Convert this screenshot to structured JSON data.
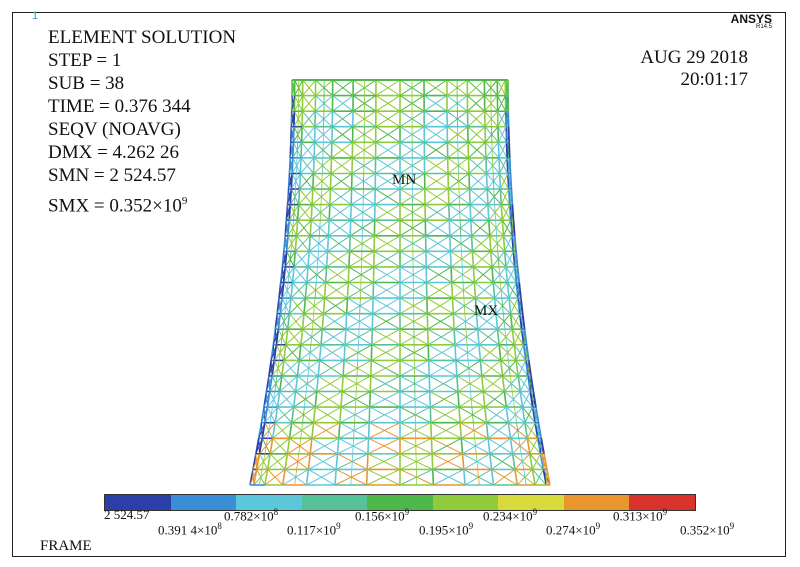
{
  "window_number": "1",
  "brand": {
    "name": "ANSYS",
    "version": "R14.5"
  },
  "info": {
    "title": "ELEMENT  SOLUTION",
    "step": "STEP = 1",
    "sub": "SUB = 38",
    "time": "TIME = 0.376 344",
    "seqv": "SEQV  (NOAVG)",
    "dmx": "DMX = 4.262 26",
    "smn": "SMN = 2 524.57",
    "smx_prefix": "SMX = 0.352×10",
    "smx_exp": "9"
  },
  "datetime": {
    "date": "AUG 29 2018",
    "time": "20:01:17"
  },
  "markers": {
    "min": "MN",
    "max": "MX"
  },
  "legend": {
    "colors": [
      "#2b3fa6",
      "#3a8ed6",
      "#5cc7d8",
      "#59c19a",
      "#4fb84a",
      "#8fcb3a",
      "#d8d93a",
      "#e8972e",
      "#d8332d"
    ],
    "top_labels": [
      {
        "base": "2 524.57",
        "exp": ""
      },
      {
        "base": "0.782×10",
        "exp": "8"
      },
      {
        "base": "0.156×10",
        "exp": "9"
      },
      {
        "base": "0.234×10",
        "exp": "9"
      },
      {
        "base": "0.313×10",
        "exp": "9"
      }
    ],
    "bottom_labels": [
      {
        "base": "0.391 4×10",
        "exp": "8"
      },
      {
        "base": "0.117×10",
        "exp": "9"
      },
      {
        "base": "0.195×10",
        "exp": "9"
      },
      {
        "base": "0.274×10",
        "exp": "9"
      },
      {
        "base": "0.352×10",
        "exp": "9"
      }
    ]
  },
  "frame_label": "FRAME"
}
